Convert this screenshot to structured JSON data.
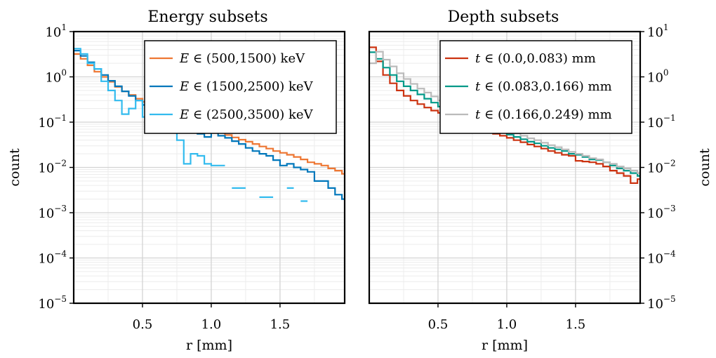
{
  "chart_data": [
    {
      "type": "line",
      "step": true,
      "title": "Energy subsets",
      "xlabel": "r [mm]",
      "ylabel": "count",
      "xlim": [
        0.0,
        1.97
      ],
      "ylim": [
        1e-05,
        10
      ],
      "yscale": "log",
      "xticks": [
        0.5,
        1.0,
        1.5
      ],
      "xtick_labels": [
        "0.5",
        "1.0",
        "1.5"
      ],
      "yticks": [
        {
          "base": "10",
          "exp": "1"
        },
        {
          "base": "10",
          "exp": "0"
        },
        {
          "base": "10",
          "exp": "−1"
        },
        {
          "base": "10",
          "exp": "−2"
        },
        {
          "base": "10",
          "exp": "−3"
        },
        {
          "base": "10",
          "exp": "−4"
        },
        {
          "base": "10",
          "exp": "−5"
        }
      ],
      "ytick_values": [
        10,
        1,
        0.1,
        0.01,
        0.001,
        0.0001,
        1e-05
      ],
      "ylabel_side": "left",
      "grid": true,
      "legend_position": "top-right",
      "bin_edges": [
        0.0,
        0.05,
        0.1,
        0.15,
        0.2,
        0.25,
        0.3,
        0.35,
        0.4,
        0.45,
        0.5,
        0.55,
        0.6,
        0.65,
        0.7,
        0.75,
        0.8,
        0.85,
        0.9,
        0.95,
        1.0,
        1.05,
        1.1,
        1.15,
        1.2,
        1.25,
        1.3,
        1.35,
        1.4,
        1.45,
        1.5,
        1.55,
        1.6,
        1.65,
        1.7,
        1.75,
        1.8,
        1.85,
        1.9,
        1.95,
        2.0
      ],
      "series": [
        {
          "name": "E ∈ (500,1500) keV",
          "legend_italic": "E",
          "legend_rest": " ∈ (500,1500) keV",
          "color": "#EE7733",
          "values": [
            3.2,
            2.5,
            1.8,
            1.3,
            1.0,
            0.78,
            0.6,
            0.48,
            0.4,
            0.33,
            0.28,
            0.24,
            0.2,
            0.17,
            0.145,
            0.125,
            0.11,
            0.095,
            0.083,
            0.074,
            0.066,
            0.058,
            0.052,
            0.046,
            0.041,
            0.037,
            0.033,
            0.029,
            0.026,
            0.023,
            0.021,
            0.019,
            0.017,
            0.015,
            0.013,
            0.012,
            0.011,
            0.0095,
            0.0085,
            0.0072
          ]
        },
        {
          "name": "E ∈ (1500,2500) keV",
          "legend_italic": "E",
          "legend_rest": " ∈ (1500,2500) keV",
          "color": "#0077BB",
          "values": [
            3.8,
            2.9,
            2.1,
            1.5,
            1.1,
            0.82,
            0.62,
            0.48,
            0.38,
            0.3,
            0.24,
            0.19,
            0.16,
            0.13,
            0.11,
            0.09,
            0.075,
            0.064,
            0.055,
            0.047,
            0.06,
            0.05,
            0.045,
            0.038,
            0.033,
            0.027,
            0.023,
            0.02,
            0.018,
            0.0145,
            0.011,
            0.012,
            0.01,
            0.009,
            0.008,
            0.005,
            0.005,
            0.0035,
            0.0025,
            0.002
          ]
        },
        {
          "name": "E ∈ (2500,3500) keV",
          "legend_italic": "E",
          "legend_rest": " ∈ (2500,3500) keV",
          "color": "#33BBEE",
          "values": [
            4.2,
            3.2,
            2.0,
            1.5,
            0.8,
            0.5,
            0.3,
            0.15,
            0.2,
            0.3,
            0.13,
            0.12,
            0.1,
            0.08,
            0.07,
            0.04,
            0.012,
            0.02,
            0.018,
            0.012,
            0.011,
            0.011,
            null,
            0.0035,
            0.0035,
            null,
            null,
            0.0022,
            0.0022,
            null,
            null,
            0.0035,
            null,
            0.0018,
            null,
            null,
            null,
            null,
            null,
            null
          ]
        }
      ]
    },
    {
      "type": "line",
      "step": true,
      "title": "Depth subsets",
      "xlabel": "r [mm]",
      "ylabel": "count",
      "xlim": [
        0.0,
        1.97
      ],
      "ylim": [
        1e-05,
        10
      ],
      "yscale": "log",
      "xticks": [
        0.5,
        1.0,
        1.5
      ],
      "xtick_labels": [
        "0.5",
        "1.0",
        "1.5"
      ],
      "yticks": [
        {
          "base": "10",
          "exp": "1"
        },
        {
          "base": "10",
          "exp": "0"
        },
        {
          "base": "10",
          "exp": "−1"
        },
        {
          "base": "10",
          "exp": "−2"
        },
        {
          "base": "10",
          "exp": "−3"
        },
        {
          "base": "10",
          "exp": "−4"
        },
        {
          "base": "10",
          "exp": "−5"
        }
      ],
      "ytick_values": [
        10,
        1,
        0.1,
        0.01,
        0.001,
        0.0001,
        1e-05
      ],
      "ylabel_side": "right",
      "grid": true,
      "legend_position": "top-right",
      "bin_edges": [
        0.0,
        0.05,
        0.1,
        0.15,
        0.2,
        0.25,
        0.3,
        0.35,
        0.4,
        0.45,
        0.5,
        0.55,
        0.6,
        0.65,
        0.7,
        0.75,
        0.8,
        0.85,
        0.9,
        0.95,
        1.0,
        1.05,
        1.1,
        1.15,
        1.2,
        1.25,
        1.3,
        1.35,
        1.4,
        1.45,
        1.5,
        1.55,
        1.6,
        1.65,
        1.7,
        1.75,
        1.8,
        1.85,
        1.9,
        1.95,
        2.0
      ],
      "series": [
        {
          "name": "t ∈ (0.0,0.083) mm",
          "legend_italic": "t",
          "legend_rest": " ∈ (0.0,0.083) mm",
          "color": "#CC3311",
          "values": [
            4.5,
            2.2,
            1.1,
            0.72,
            0.5,
            0.38,
            0.3,
            0.25,
            0.21,
            0.18,
            0.16,
            0.14,
            0.12,
            0.1,
            0.09,
            0.08,
            0.07,
            0.062,
            0.055,
            0.05,
            0.045,
            0.04,
            0.036,
            0.032,
            0.029,
            0.026,
            0.023,
            0.021,
            0.019,
            0.018,
            0.014,
            0.0135,
            0.013,
            0.012,
            0.0105,
            0.0085,
            0.0075,
            0.0065,
            0.0045,
            0.0055
          ]
        },
        {
          "name": "t ∈ (0.083,0.166) mm",
          "legend_italic": "t",
          "legend_rest": " ∈ (0.083,0.166) mm",
          "color": "#009988",
          "values": [
            3.5,
            2.5,
            1.6,
            1.1,
            0.8,
            0.62,
            0.5,
            0.41,
            0.33,
            0.27,
            0.22,
            0.19,
            0.16,
            0.135,
            0.115,
            0.1,
            0.088,
            0.077,
            0.068,
            0.06,
            0.053,
            0.047,
            0.042,
            0.037,
            0.034,
            0.03,
            0.027,
            0.025,
            0.023,
            0.02,
            0.019,
            0.017,
            0.015,
            0.0145,
            0.013,
            0.011,
            0.0095,
            0.0085,
            0.0075,
            0.0065
          ]
        },
        {
          "name": "t ∈ (0.166,0.249) mm",
          "legend_italic": "t",
          "legend_rest": " ∈ (0.166,0.249) mm",
          "color": "#BBBBBB",
          "values": [
            2.0,
            3.6,
            2.4,
            1.7,
            1.2,
            0.9,
            0.7,
            0.55,
            0.45,
            0.37,
            0.3,
            0.25,
            0.21,
            0.18,
            0.15,
            0.13,
            0.11,
            0.095,
            0.083,
            0.072,
            0.063,
            0.056,
            0.05,
            0.044,
            0.04,
            0.035,
            0.031,
            0.028,
            0.025,
            0.022,
            0.02,
            0.018,
            0.016,
            0.015,
            0.013,
            0.012,
            0.0105,
            0.0095,
            0.0085,
            0.0075
          ]
        }
      ]
    }
  ]
}
